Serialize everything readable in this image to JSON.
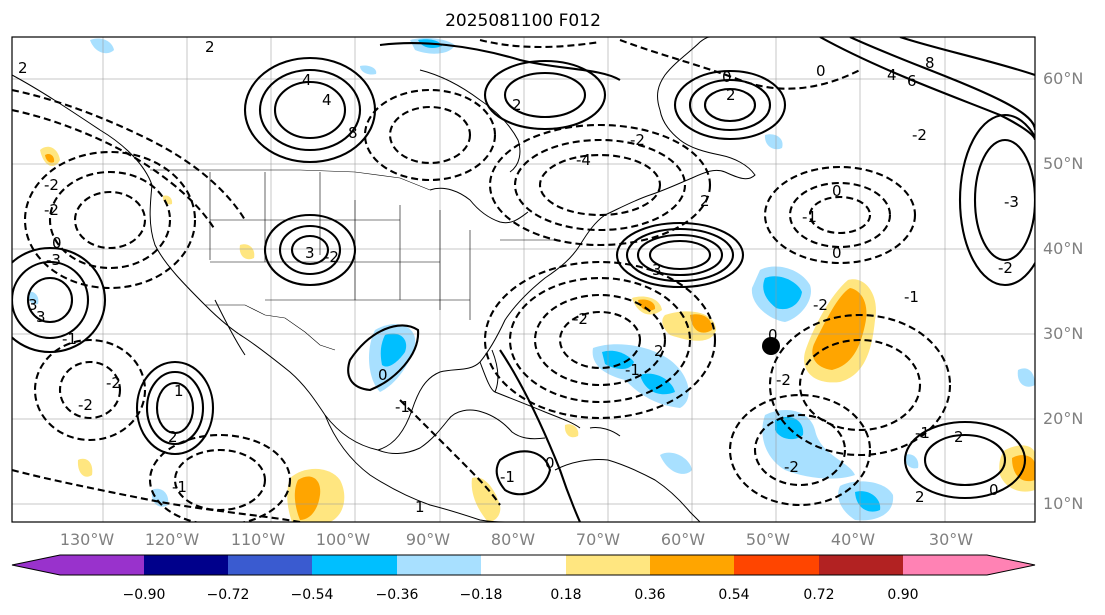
{
  "title": "2025081100 F012",
  "axes": {
    "lon_labels": [
      "130°W",
      "120°W",
      "110°W",
      "100°W",
      "90°W",
      "80°W",
      "70°W",
      "60°W",
      "50°W",
      "40°W",
      "30°W"
    ],
    "lat_labels": [
      "60°N",
      "50°N",
      "40°N",
      "30°N",
      "20°N",
      "10°N"
    ]
  },
  "colorbar": {
    "ticks": [
      "−0.90",
      "−0.72",
      "−0.54",
      "−0.36",
      "−0.18",
      "0.18",
      "0.36",
      "0.54",
      "0.72",
      "0.90"
    ],
    "colors": [
      "#9932cc",
      "#00008b",
      "#3a5bd0",
      "#00bfff",
      "#a8e0ff",
      "#ffffff",
      "#ffe680",
      "#ffa500",
      "#ff4500",
      "#b22222",
      "#ff82b4"
    ]
  },
  "contour_labels": [
    "2",
    "2",
    "4",
    "4",
    "8",
    "2",
    "0",
    "2",
    "8",
    "6",
    "4",
    "0",
    "-2",
    "2",
    "-4",
    "-2",
    "-1",
    "-3",
    "3",
    "-2",
    "3",
    "-2",
    "-2",
    "0",
    "-1",
    "0",
    "-2",
    "3",
    "-2",
    "-3",
    "3",
    "0",
    "-1",
    "-2",
    "2",
    "-1",
    "-2",
    "-1",
    "0",
    "-2",
    "-2",
    "1",
    "0",
    "-1",
    "2",
    "2",
    "-1",
    "0",
    "1",
    "-1",
    "0",
    "2",
    "-2"
  ],
  "marker": {
    "shape": "filled circle",
    "color": "#000000"
  }
}
